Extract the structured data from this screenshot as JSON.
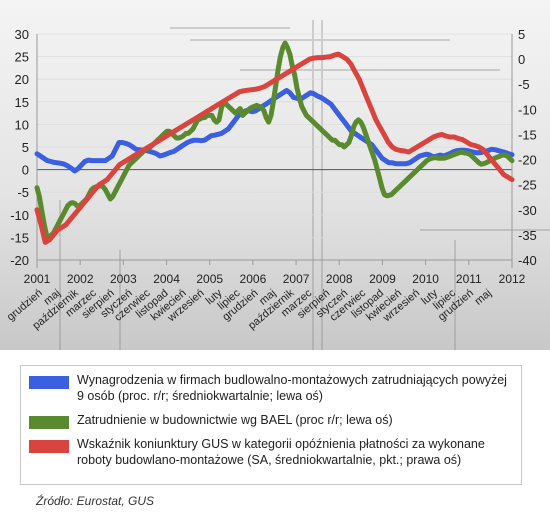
{
  "chart_data": {
    "type": "line",
    "left_axis": {
      "ylim": [
        -20,
        30
      ],
      "ticks": [
        "30",
        "25",
        "20",
        "15",
        "10",
        "5",
        "0",
        "-5",
        "-10",
        "-15",
        "-20"
      ]
    },
    "right_axis": {
      "ylim": [
        -40,
        5
      ],
      "ticks": [
        "5",
        "0",
        "-5",
        "-10",
        "-15",
        "-20",
        "-25",
        "-30",
        "-35",
        "-40"
      ]
    },
    "year_labels": [
      "2001",
      "2002",
      "2003",
      "2004",
      "2005",
      "2006",
      "2007",
      "2008",
      "2009",
      "2010",
      "2011",
      "2012"
    ],
    "month_labels": [
      "grudzień",
      "maj",
      "październik",
      "marzec",
      "sierpień",
      "styczeń",
      "czerwiec",
      "listopad",
      "kwiecień",
      "wrzesień",
      "luty",
      "lipiec",
      "grudzień",
      "maj",
      "październik",
      "marzec",
      "sierpień",
      "styczeń",
      "czerwiec",
      "listopad",
      "kwiecień",
      "wrzesień",
      "luty",
      "lipiec",
      "grudzień",
      "maj"
    ],
    "x_start": "2001-12",
    "series": [
      {
        "name": "Wynagrodzenia w firmach budlowalno-montażowych zatrudniających powyżej 9 osób (proc. r/r; średniokwartalnie; lewa oś)",
        "axis": "left",
        "color": "#3a5fe0",
        "values": [
          3.5,
          3,
          2.5,
          2,
          1.8,
          1.6,
          1.5,
          1.4,
          1.2,
          0.8,
          0.3,
          -0.3,
          0.2,
          1,
          1.8,
          2.1,
          2,
          2,
          2,
          2,
          2,
          2.5,
          3,
          4.5,
          6,
          6,
          5.8,
          5.5,
          5,
          4.5,
          4.4,
          4.3,
          4.2,
          4,
          3.8,
          3.5,
          3,
          3.2,
          3.5,
          3.8,
          4,
          4.5,
          5,
          5.5,
          6,
          6.3,
          6.5,
          6.5,
          6.4,
          6.5,
          7,
          7.5,
          7.6,
          7.8,
          8,
          8.5,
          9,
          10,
          11,
          12,
          12.5,
          13,
          13,
          12.8,
          13,
          13.5,
          14,
          14.5,
          15,
          15.5,
          16,
          16.5,
          17,
          17.5,
          17,
          16,
          15.8,
          15.5,
          16,
          16.5,
          17,
          16.8,
          16.3,
          16,
          15.5,
          15,
          14.5,
          13.5,
          12.5,
          11.5,
          10.5,
          9.5,
          8.5,
          8,
          7.5,
          7,
          6.5,
          6,
          5.5,
          4.5,
          3.5,
          2.5,
          2,
          1.5,
          1.5,
          1.3,
          1.3,
          1.3,
          1.3,
          1.5,
          2,
          2.5,
          3,
          3.2,
          3.4,
          3.2,
          2.8,
          3,
          3.2,
          3,
          3.3,
          3.6,
          4,
          4.2,
          4.3,
          4.3,
          4.2,
          4,
          3.8,
          3.7,
          3.8,
          4,
          4.2,
          4.5,
          4.4,
          4.2,
          4,
          3.8,
          3.5,
          3.3
        ]
      },
      {
        "name": "Zatrudnienie w budownictwie wg BAEL (proc r/r; lewa oś)",
        "axis": "left",
        "color": "#5a8a2e",
        "values": [
          -4,
          -6,
          -9,
          -12,
          -14.5,
          -15,
          -14.5,
          -14,
          -13,
          -12,
          -11,
          -10,
          -9,
          -8,
          -7.5,
          -7.3,
          -7.5,
          -8,
          -8,
          -7.5,
          -7,
          -6.5,
          -5.5,
          -4.5,
          -4,
          -3.8,
          -3.7,
          -3.6,
          -3.8,
          -4.5,
          -5.5,
          -6.5,
          -6,
          -5,
          -4,
          -3,
          -2,
          -1,
          0,
          1,
          1.5,
          2,
          2.5,
          3,
          3.5,
          4,
          4.5,
          4.7,
          5,
          5.5,
          6,
          6.5,
          7,
          7.5,
          8,
          8.5,
          8.5,
          8,
          7.5,
          7,
          7,
          7.2,
          7.5,
          8,
          8,
          8.5,
          9,
          10,
          11,
          11.2,
          11.5,
          11.5,
          12,
          12,
          12,
          11,
          10.5,
          11,
          13.5,
          15,
          14.5,
          14,
          13.5,
          13,
          12.5,
          13,
          13.5,
          12,
          12.5,
          13,
          13.5,
          13.8,
          14,
          14.2,
          14,
          13.8,
          13,
          11.5,
          10.5,
          12,
          15,
          18.5,
          22,
          25,
          27,
          28,
          27,
          25.5,
          23,
          21,
          18,
          16,
          14,
          13,
          12,
          11.5,
          11,
          10.5,
          10,
          9.5,
          9,
          8.5,
          8,
          7.5,
          7,
          6.5,
          6.5,
          6,
          5.5,
          5.5,
          5,
          5.5,
          6,
          7.5,
          9.5,
          10.5,
          11,
          10.5,
          9.5,
          8,
          6.5,
          5,
          3.5,
          2,
          0,
          -2,
          -4,
          -5.5,
          -5.8,
          -5.7,
          -5.5,
          -5,
          -4.5,
          -4,
          -3.5,
          -3,
          -2.5,
          -2,
          -1.5,
          -1,
          -0.5,
          0,
          0.5,
          1,
          1.5,
          2,
          2.3,
          2.5,
          2.6,
          2.6,
          2.5,
          2.5,
          2.5,
          2.6,
          2.8,
          3,
          3.2,
          3.4,
          3.6,
          3.8,
          3.8,
          3.7,
          3.6,
          3.4,
          3,
          2.5,
          2,
          1.5,
          1.2,
          1.3,
          1.5,
          1.8,
          2,
          2.3,
          2.6,
          2.8,
          3,
          3.2,
          3.2,
          3,
          2.5,
          2
        ]
      },
      {
        "name": "Wskaźnik koniunktury GUS w kategorii opóźnienia płatności za wykonane roboty budowlano-montażowe (SA, średniokwartalnie, pkt.; prawa oś)",
        "axis": "right",
        "color": "#d9443e",
        "values": [
          -30,
          -33,
          -36.5,
          -36,
          -35,
          -34,
          -33.5,
          -33,
          -32,
          -31,
          -30,
          -29,
          -28,
          -27,
          -26,
          -25,
          -24.5,
          -24,
          -23,
          -22,
          -21,
          -20.5,
          -20,
          -19.5,
          -19,
          -18.5,
          -18,
          -17.5,
          -17,
          -16.5,
          -16,
          -15.5,
          -15,
          -14.5,
          -14,
          -13.5,
          -13,
          -12.5,
          -12,
          -11.5,
          -11,
          -10.5,
          -10,
          -9.5,
          -9,
          -8.5,
          -8,
          -7.5,
          -7,
          -6.5,
          -6.3,
          -6.2,
          -6.1,
          -6,
          -5.8,
          -5.5,
          -5,
          -4.5,
          -4,
          -3.5,
          -3,
          -2.5,
          -2,
          -1.5,
          -1,
          -0.5,
          0,
          0.2,
          0.3,
          0.3,
          0.4,
          0.5,
          0.8,
          1,
          0.5,
          0,
          -1,
          -2.5,
          -4,
          -6,
          -8,
          -10,
          -12,
          -13.5,
          -15,
          -16.5,
          -17.5,
          -18,
          -18.2,
          -18.3,
          -18.5,
          -18,
          -17.5,
          -17,
          -16.5,
          -16,
          -15.5,
          -15.2,
          -15,
          -15.3,
          -15.5,
          -15.5,
          -15.8,
          -16,
          -16.5,
          -17,
          -17.2,
          -17.5,
          -18,
          -19,
          -20,
          -21,
          -22,
          -23,
          -23.5,
          -24
        ]
      }
    ]
  },
  "legend": [
    {
      "label": "Wynagrodzenia w firmach budlowalno-montażowych zatrudniających powyżej 9 osób (proc. r/r; średniokwartalnie; lewa oś)",
      "color": "#3a5fe0"
    },
    {
      "label": "Zatrudnienie w budownictwie wg BAEL (proc r/r; lewa oś)",
      "color": "#5a8a2e"
    },
    {
      "label": "Wskaźnik koniunktury GUS w kategorii opóźnienia płatności za wykonane roboty budowlano-montażowe (SA, średniokwartalnie, pkt.; prawa oś)",
      "color": "#d9443e"
    }
  ],
  "source": "Źródło: Eurostat, GUS",
  "colors": {
    "grid": "#dcdcdc",
    "axis": "#999999",
    "text": "#222222"
  }
}
